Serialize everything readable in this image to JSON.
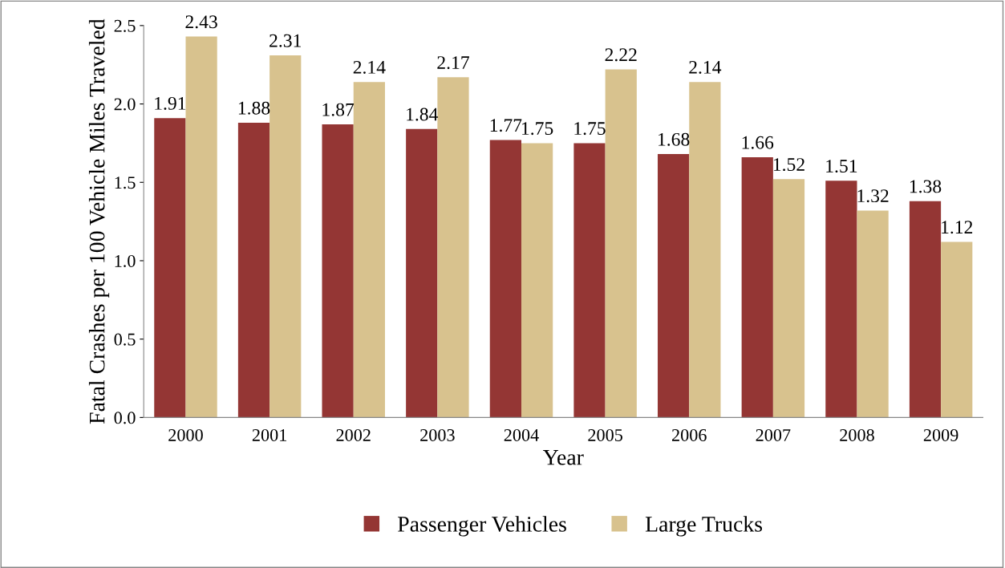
{
  "chart_data": {
    "type": "bar",
    "xlabel": "Year",
    "ylabel": "Fatal Crashes per 100 Vehicle Miles Traveled",
    "categories": [
      "2000",
      "2001",
      "2002",
      "2003",
      "2004",
      "2005",
      "2006",
      "2007",
      "2008",
      "2009"
    ],
    "series": [
      {
        "name": "Passenger Vehicles",
        "color": "#943634",
        "values": [
          1.91,
          1.88,
          1.87,
          1.84,
          1.77,
          1.75,
          1.68,
          1.66,
          1.51,
          1.38
        ]
      },
      {
        "name": "Large Trucks",
        "color": "#d8c28e",
        "values": [
          2.43,
          2.31,
          2.14,
          2.17,
          1.75,
          2.22,
          2.14,
          1.52,
          1.32,
          1.12
        ]
      }
    ],
    "ylim": [
      0,
      2.5
    ],
    "yticks": [
      {
        "value": 0,
        "label": "0.0"
      },
      0.5,
      {
        "value": 1,
        "label": "1.0"
      },
      1.5,
      {
        "value": 2,
        "label": "2.0"
      },
      2.5
    ],
    "grid": false,
    "legend": "bottom",
    "data_labels": true
  }
}
